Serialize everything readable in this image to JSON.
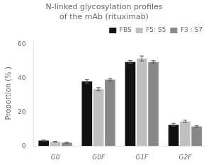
{
  "chart_data": {
    "type": "bar",
    "title": "N-linked glycosylation profiles\nof the mAb (rituximab)",
    "y_label": "Proportion (% )",
    "categories": [
      "G0",
      "G0F",
      "G1F",
      "G2F"
    ],
    "series": [
      {
        "name": "FBS",
        "color": "#111111",
        "values": [
          3.2,
          38.0,
          49.5,
          12.5
        ],
        "errors": [
          0.3,
          1.0,
          0.8,
          0.8
        ]
      },
      {
        "name": "F5: S5",
        "color": "#c0c0c0",
        "values": [
          2.5,
          33.5,
          51.5,
          14.5
        ],
        "errors": [
          0.2,
          0.8,
          1.5,
          0.7
        ]
      },
      {
        "name": "F3 : S7",
        "color": "#888888",
        "values": [
          2.0,
          39.0,
          49.5,
          11.5
        ],
        "errors": [
          0.2,
          0.7,
          0.7,
          0.5
        ]
      }
    ],
    "ylim": [
      0,
      62
    ],
    "yticks": [
      0,
      20,
      40,
      60
    ],
    "grid": false,
    "legend": "upper right"
  }
}
